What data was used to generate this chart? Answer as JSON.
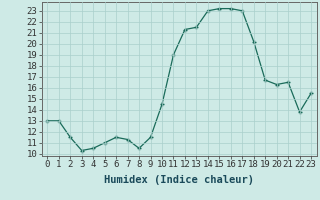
{
  "x": [
    0,
    1,
    2,
    3,
    4,
    5,
    6,
    7,
    8,
    9,
    10,
    11,
    12,
    13,
    14,
    15,
    16,
    17,
    18,
    19,
    20,
    21,
    22,
    23
  ],
  "y": [
    13,
    13,
    11.5,
    10.3,
    10.5,
    11,
    11.5,
    11.3,
    10.5,
    11.5,
    14.5,
    19,
    21.3,
    21.5,
    23,
    23.2,
    23.2,
    23,
    20.2,
    16.7,
    16.3,
    16.5,
    13.8,
    15.5
  ],
  "line_color": "#1a6b5a",
  "marker_color": "#1a6b5a",
  "bg_color": "#ceeae6",
  "grid_color": "#aacfcc",
  "xlabel": "Humidex (Indice chaleur)",
  "xlim": [
    -0.5,
    23.5
  ],
  "ylim": [
    9.8,
    23.8
  ],
  "xtick_labels": [
    "0",
    "1",
    "2",
    "3",
    "4",
    "5",
    "6",
    "7",
    "8",
    "9",
    "10",
    "11",
    "12",
    "13",
    "14",
    "15",
    "16",
    "17",
    "18",
    "19",
    "20",
    "21",
    "22",
    "23"
  ],
  "ytick_values": [
    10,
    11,
    12,
    13,
    14,
    15,
    16,
    17,
    18,
    19,
    20,
    21,
    22,
    23
  ],
  "xlabel_fontsize": 7.5,
  "tick_fontsize": 6.5
}
